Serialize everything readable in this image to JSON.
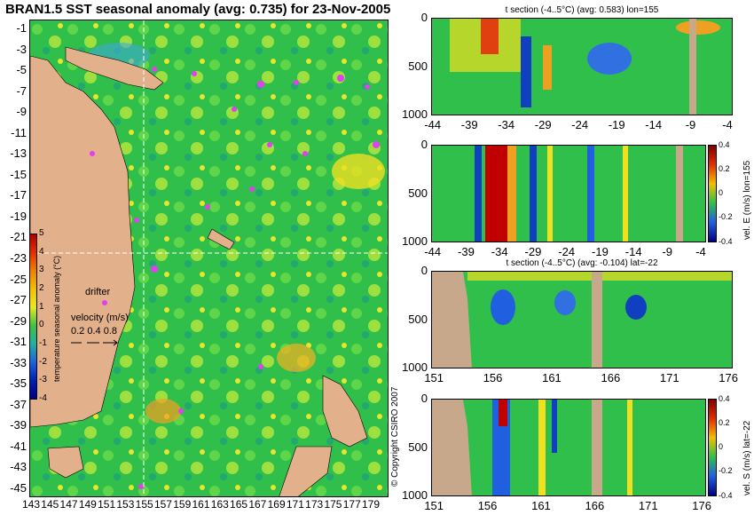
{
  "title": "BRAN1.5 SST seasonal anomaly (avg: 0.735) for 23-Nov-2005",
  "map": {
    "lat_labels": [
      "-1",
      "-3",
      "-5",
      "-7",
      "-9",
      "-11",
      "-13",
      "-15",
      "-17",
      "-19",
      "-21",
      "-23",
      "-25",
      "-27",
      "-29",
      "-31",
      "-33",
      "-35",
      "-37",
      "-39",
      "-41",
      "-43",
      "-45"
    ],
    "lon_labels": [
      "143",
      "145",
      "147",
      "149",
      "151",
      "153",
      "155",
      "157",
      "159",
      "161",
      "163",
      "165",
      "167",
      "169",
      "171",
      "173",
      "175",
      "177",
      "179"
    ],
    "section_lon": 155,
    "section_lat": -22
  },
  "colorbar": {
    "label": "temperature seasonal anomaly (°C)",
    "ticks": [
      "5",
      "4",
      "3",
      "2",
      "1",
      "0",
      "-1",
      "-2",
      "-3",
      "-4"
    ]
  },
  "legend": {
    "drifter": "drifter",
    "velocity_title": "velocity (m/s)",
    "velocity_values": "0.2 0.4 0.8"
  },
  "copyright": "© Copyright CSIRO 2007",
  "panels": [
    {
      "title": "t section (-4..5°C) (avg: 0.583) lon=155",
      "x_ticks": [
        "-44",
        "-39",
        "-34",
        "-29",
        "-24",
        "-19",
        "-14",
        "-9",
        "-4"
      ],
      "y_ticks": [
        "0",
        "500",
        "1000"
      ],
      "colorbar_label": "",
      "colorbar_ticks": []
    },
    {
      "title": "",
      "x_ticks": [
        "-44",
        "-39",
        "-34",
        "-29",
        "-24",
        "-19",
        "-14",
        "-9",
        "-4"
      ],
      "y_ticks": [
        "0",
        "500",
        "1000"
      ],
      "colorbar_label": "vel. E (m/s) lon=155",
      "colorbar_ticks": [
        "0.4",
        "0.2",
        "0",
        "-0.2",
        "-0.4"
      ]
    },
    {
      "title": "t section (-4..5°C) (avg: -0.104) lat=-22",
      "x_ticks": [
        "151",
        "156",
        "161",
        "166",
        "171",
        "176"
      ],
      "y_ticks": [
        "0",
        "500",
        "1000"
      ],
      "colorbar_label": "",
      "colorbar_ticks": []
    },
    {
      "title": "",
      "x_ticks": [
        "151",
        "156",
        "161",
        "166",
        "171",
        "176"
      ],
      "y_ticks": [
        "0",
        "500",
        "1000"
      ],
      "colorbar_label": "vel. S (m/s) lat=-22",
      "colorbar_ticks": [
        "0.4",
        "0.2",
        "0",
        "-0.2",
        "-0.4"
      ]
    }
  ],
  "colors": {
    "land": "#e3b08c",
    "anomaly_green": "#2fbf4a",
    "anomaly_yellow": "#f0e020",
    "anomaly_magenta": "#e040f0",
    "section_land": "#c8a88a"
  }
}
